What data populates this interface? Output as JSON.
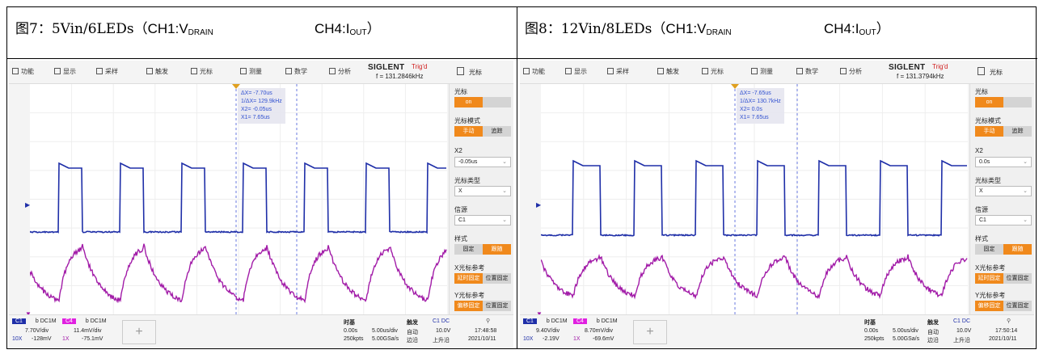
{
  "panels": [
    {
      "caption": {
        "prefix": "图7：5Vin/6LEDs（",
        "ch1": "CH1:V",
        "ch1_sub": "DRAIN",
        "ch4": "CH4:I",
        "ch4_sub": "OUT",
        "suffix": "）"
      },
      "toolbar": {
        "func": "功能",
        "display": "显示",
        "acquire": "采样",
        "trigger": "触发",
        "cursor": "光标",
        "measure": "测量",
        "math": "数学",
        "analysis": "分析",
        "brand": "SIGLENT",
        "trig_status": "Trig'd",
        "freq": "f = 131.2846kHz",
        "menu": "光标"
      },
      "cursor_info": [
        "ΔX= -7.70us",
        "1/ΔX= 129.9kHz",
        "X2= -0.05us",
        "X1= 7.65us"
      ],
      "side": {
        "cursor_label": "光标",
        "cursor_on": "on",
        "mode_label": "光标模式",
        "mode_manual": "手动",
        "mode_track": "追踪",
        "x2_label": "X2",
        "x2_value": "-0.05us",
        "type_label": "光标类型",
        "type_value": "X",
        "source_label": "信源",
        "source_value": "C1",
        "style_label": "样式",
        "style_fixed": "固定",
        "style_follow": "跟随",
        "xref_label": "X光标参考",
        "xref_delay": "延时固定",
        "xref_pos": "位置固定",
        "yref_label": "Y光标参考",
        "yref_offset": "偏移固定",
        "yref_pos": "位置固定"
      },
      "bottom": {
        "c1": "C1",
        "c1_cpl": "b DC1M",
        "c1_scale": "7.70V/div",
        "c1_probe": "10X",
        "c1_offset": "-128mV",
        "c4": "C4",
        "c4_cpl": "b DC1M",
        "c4_scale": "11.4mV/div",
        "c4_probe": "1X",
        "c4_offset": "-75.1mV",
        "tb_label": "时基",
        "tb_delay": "0.00s",
        "tb_scale": "5.00us/div",
        "tb_pts": "250kpts",
        "tb_rate": "5.00GSa/s",
        "trig_label": "触发",
        "trig_mode": "自动",
        "trig_edge": "边沿",
        "trig_src": "C1 DC",
        "trig_level": "10.0V",
        "trig_slope": "上升沿",
        "time": "17:48:58",
        "date": "2021/10/11"
      }
    },
    {
      "caption": {
        "prefix": "图8：12Vin/8LEDs（",
        "ch1": "CH1:V",
        "ch1_sub": "DRAIN",
        "ch4": "CH4:I",
        "ch4_sub": "OUT",
        "suffix": "）"
      },
      "toolbar": {
        "func": "功能",
        "display": "显示",
        "acquire": "采样",
        "trigger": "触发",
        "cursor": "光标",
        "measure": "测量",
        "math": "数学",
        "analysis": "分析",
        "brand": "SIGLENT",
        "trig_status": "Trig'd",
        "freq": "f = 131.3794kHz",
        "menu": "光标"
      },
      "cursor_info": [
        "ΔX= -7.65us",
        "1/ΔX= 130.7kHz",
        "X2= 0.0s",
        "X1= 7.65us"
      ],
      "side": {
        "cursor_label": "光标",
        "cursor_on": "on",
        "mode_label": "光标模式",
        "mode_manual": "手动",
        "mode_track": "追踪",
        "x2_label": "X2",
        "x2_value": "0.0s",
        "type_label": "光标类型",
        "type_value": "X",
        "source_label": "信源",
        "source_value": "C1",
        "style_label": "样式",
        "style_fixed": "固定",
        "style_follow": "跟随",
        "xref_label": "X光标参考",
        "xref_delay": "延时固定",
        "xref_pos": "位置固定",
        "yref_label": "Y光标参考",
        "yref_offset": "偏移固定",
        "yref_pos": "位置固定"
      },
      "bottom": {
        "c1": "C1",
        "c1_cpl": "b DC1M",
        "c1_scale": "9.40V/div",
        "c1_probe": "10X",
        "c1_offset": "-2.19V",
        "c4": "C4",
        "c4_cpl": "b DC1M",
        "c4_scale": "8.70mV/div",
        "c4_probe": "1X",
        "c4_offset": "-69.6mV",
        "tb_label": "时基",
        "tb_delay": "0.00s",
        "tb_scale": "5.00us/div",
        "tb_pts": "250kpts",
        "tb_rate": "5.00GSa/s",
        "trig_label": "触发",
        "trig_mode": "自动",
        "trig_edge": "边沿",
        "trig_src": "C1 DC",
        "trig_level": "10.0V",
        "trig_slope": "上升沿",
        "time": "17:50:14",
        "date": "2021/10/11"
      }
    }
  ],
  "colors": {
    "ch1": "#1f2fa8",
    "ch4": "#a21ca8",
    "accent": "#f0891c"
  }
}
